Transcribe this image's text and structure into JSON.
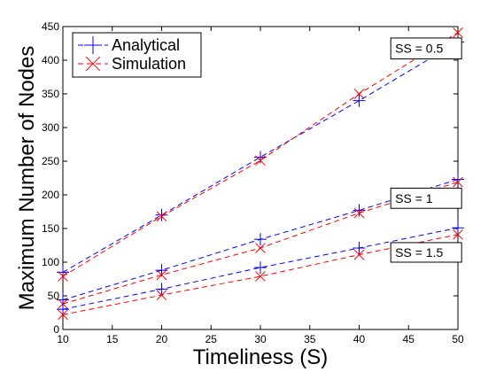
{
  "chart_data": {
    "type": "line",
    "title": "",
    "xlabel": "Timeliness (S)",
    "ylabel": "Maximum Number of Nodes",
    "xlim": [
      10,
      50
    ],
    "ylim": [
      0,
      450
    ],
    "xticks": [
      10,
      15,
      20,
      25,
      30,
      35,
      40,
      45,
      50
    ],
    "yticks": [
      0,
      50,
      100,
      150,
      200,
      250,
      300,
      350,
      400,
      450
    ],
    "grid": false,
    "legend_position": "top-left",
    "x": [
      10,
      20,
      30,
      40,
      50
    ],
    "series": [
      {
        "name": "Analytical",
        "group": "SS = 0.5",
        "color": "#0000ff",
        "marker": "plus",
        "values": [
          85,
          170,
          256,
          340,
          427
        ]
      },
      {
        "name": "Simulation",
        "group": "SS = 0.5",
        "color": "#ff0000",
        "marker": "x",
        "values": [
          79,
          168,
          251,
          350,
          441
        ]
      },
      {
        "name": "Analytical",
        "group": "SS = 1",
        "color": "#0000ff",
        "marker": "plus",
        "values": [
          44,
          88,
          134,
          177,
          223
        ]
      },
      {
        "name": "Simulation",
        "group": "SS = 1",
        "color": "#ff0000",
        "marker": "x",
        "values": [
          38,
          81,
          121,
          173,
          219
        ]
      },
      {
        "name": "Analytical",
        "group": "SS = 1.5",
        "color": "#0000ff",
        "marker": "plus",
        "values": [
          30,
          60,
          92,
          121,
          151
        ]
      },
      {
        "name": "Simulation",
        "group": "SS = 1.5",
        "color": "#ff0000",
        "marker": "x",
        "values": [
          22,
          51,
          79,
          111,
          141
        ]
      }
    ],
    "legend": [
      {
        "label": "Analytical",
        "color": "#0000ff",
        "marker": "plus"
      },
      {
        "label": "Simulation",
        "color": "#ff0000",
        "marker": "x"
      }
    ],
    "annotations": [
      {
        "text": "SS = 0.5",
        "x": 43.2,
        "y_top": 433,
        "y_bottom": 402
      },
      {
        "text": "SS = 1",
        "x": 43.2,
        "y_top": 210,
        "y_bottom": 180
      },
      {
        "text": "SS = 1.5",
        "x": 43.2,
        "y_top": 129,
        "y_bottom": 100
      }
    ]
  }
}
